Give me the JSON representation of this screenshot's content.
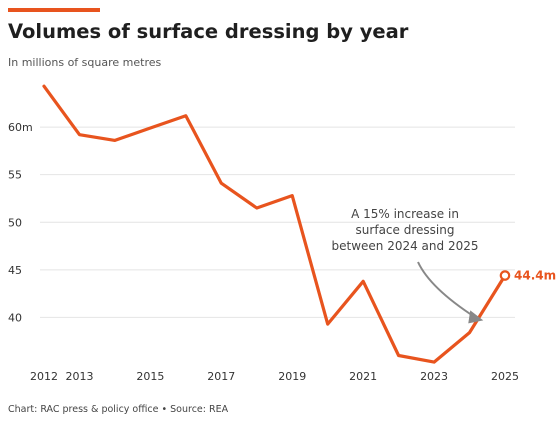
{
  "header": {
    "title": "Volumes of surface dressing by year",
    "subtitle": "In millions of square metres"
  },
  "footer": {
    "source": "Chart: RAC press & policy office • Source: REA"
  },
  "colors": {
    "accent": "#e8541e",
    "line": "#e8541e",
    "grid": "#e4e4e4",
    "axis_text": "#333333",
    "annotation_text": "#444444",
    "arrow": "#888888"
  },
  "chart_data": {
    "type": "line",
    "title": "Volumes of surface dressing by year",
    "subtitle": "In millions of square metres",
    "xlabel": "",
    "ylabel": "",
    "x": [
      2012,
      2013,
      2014,
      2015,
      2016,
      2017,
      2018,
      2019,
      2020,
      2021,
      2022,
      2023,
      2024,
      2025
    ],
    "series": [
      {
        "values": [
          64.3,
          59.2,
          58.6,
          59.9,
          61.2,
          54.1,
          51.5,
          52.8,
          39.3,
          43.8,
          36.0,
          35.3,
          38.4,
          44.4
        ]
      }
    ],
    "x_ticks": [
      2012,
      2013,
      2015,
      2017,
      2019,
      2021,
      2023,
      2025
    ],
    "x_tick_labels": [
      "2012",
      "2013",
      "2015",
      "2017",
      "2019",
      "2021",
      "2023",
      "2025"
    ],
    "y_ticks": [
      40,
      45,
      50,
      55,
      60
    ],
    "y_tick_labels": [
      "40",
      "45",
      "50",
      "55",
      "60m"
    ],
    "xlim": [
      2012,
      2025
    ],
    "ylim": [
      35,
      66
    ],
    "grid": true,
    "legend": "none",
    "annotations": [
      {
        "text_lines": [
          "A 15% increase in",
          "surface dressing",
          "between 2024 and 2025"
        ],
        "arrow_target_year": 2024.5
      },
      {
        "text": "44.4m",
        "year": 2025,
        "value": 44.4
      }
    ]
  }
}
